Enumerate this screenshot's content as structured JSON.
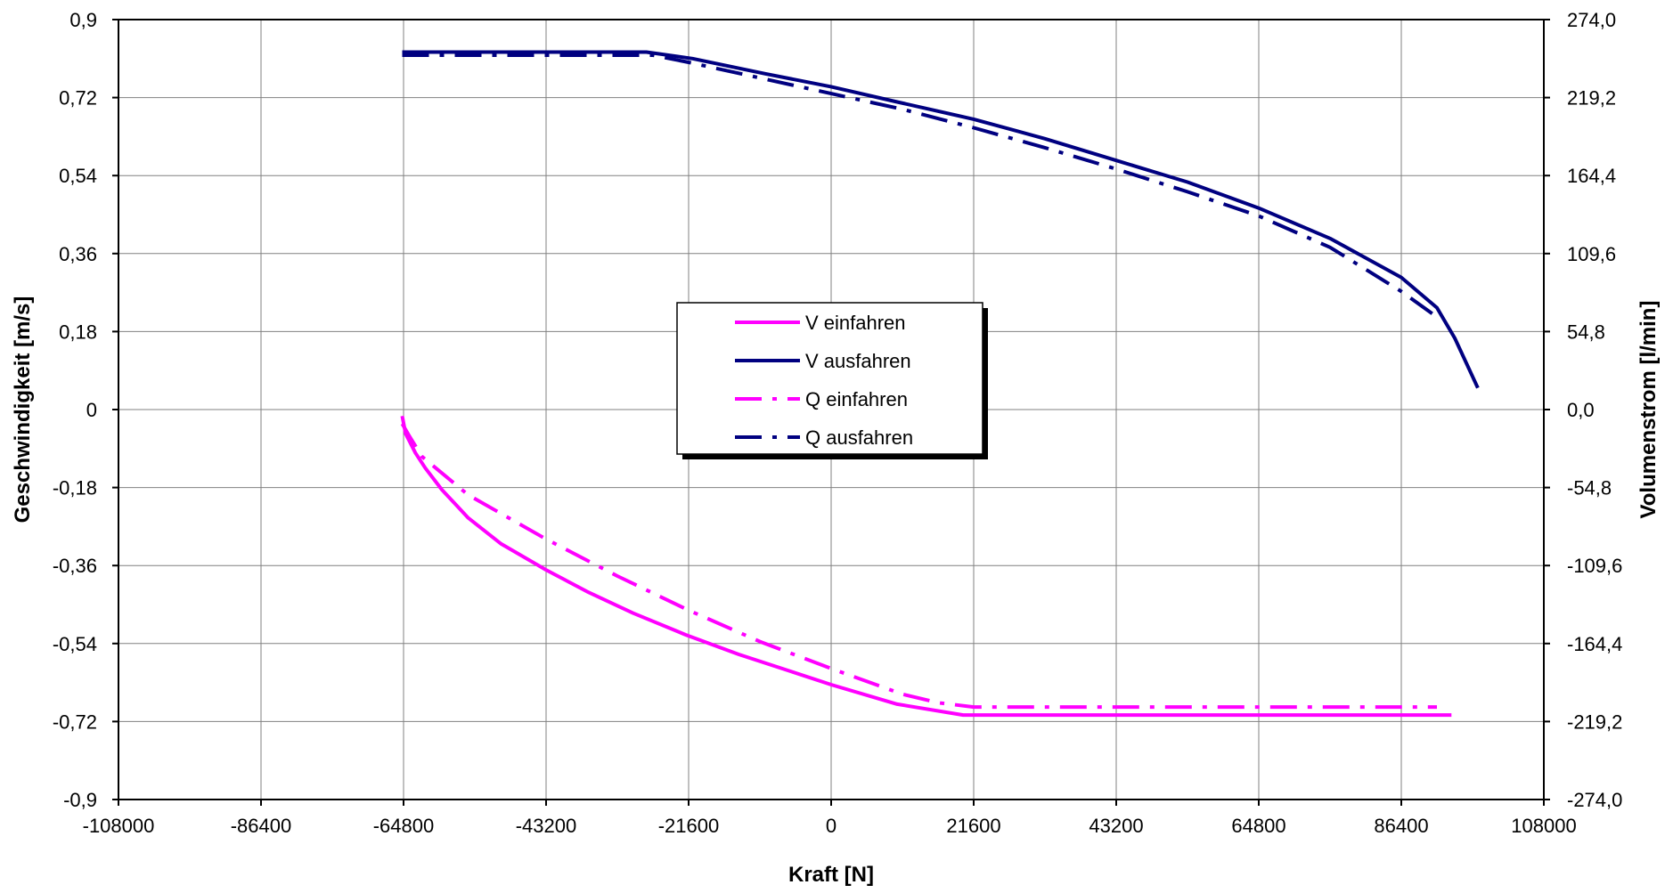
{
  "chart_data": {
    "type": "line",
    "title": "",
    "xlabel": "Kraft [N]",
    "ylabel": "Geschwindigkeit [m/s]",
    "y2label": "Volumenstrom [l/min]",
    "xlim": [
      -108000,
      108000
    ],
    "ylim": [
      -0.9,
      0.9
    ],
    "y2lim": [
      -274.0,
      274.0
    ],
    "grid": true,
    "legend_position": "center",
    "x_ticks": [
      "-108000",
      "-86400",
      "-64800",
      "-43200",
      "-21600",
      "0",
      "21600",
      "43200",
      "64800",
      "86400",
      "108000"
    ],
    "y_ticks": [
      "0,9",
      "0,72",
      "0,54",
      "0,36",
      "0,18",
      "0",
      "-0,18",
      "-0,36",
      "-0,54",
      "-0,72",
      "-0,9"
    ],
    "y2_ticks": [
      "274,0",
      "219,2",
      "164,4",
      "109,6",
      "54,8",
      "0,0",
      "-54,8",
      "-109,6",
      "-164,4",
      "-219,2",
      "-274,0"
    ],
    "series": [
      {
        "name": "V einfahren",
        "axis": "left",
        "color": "#ff00ff",
        "dash": "solid",
        "x": [
          -65000,
          -64500,
          -63000,
          -61500,
          -59000,
          -55000,
          -50000,
          -43200,
          -37000,
          -30000,
          -22000,
          -14000,
          -6000,
          0,
          10000,
          20000,
          30000,
          43200,
          64800,
          86400,
          94000
        ],
        "y": [
          -0.015,
          -0.055,
          -0.1,
          -0.135,
          -0.185,
          -0.25,
          -0.31,
          -0.37,
          -0.42,
          -0.47,
          -0.52,
          -0.565,
          -0.605,
          -0.635,
          -0.68,
          -0.705,
          -0.705,
          -0.705,
          -0.705,
          -0.705,
          -0.705
        ]
      },
      {
        "name": "V ausfahren",
        "axis": "left",
        "color": "#000080",
        "dash": "solid",
        "x": [
          -65000,
          -55000,
          -43200,
          -28000,
          -21000,
          -10000,
          0,
          10000,
          21600,
          32400,
          43200,
          54000,
          64800,
          75600,
          86400,
          91800,
          94500,
          98000
        ],
        "y": [
          0.825,
          0.825,
          0.825,
          0.825,
          0.81,
          0.775,
          0.745,
          0.71,
          0.67,
          0.625,
          0.575,
          0.525,
          0.465,
          0.395,
          0.305,
          0.235,
          0.165,
          0.05
        ]
      },
      {
        "name": "Q einfahren",
        "axis": "right",
        "color": "#ff00ff",
        "dash": "dashdot",
        "x": [
          -65000,
          -64000,
          -62000,
          -55000,
          -43200,
          -32400,
          -21600,
          -10800,
          0,
          10800,
          16200,
          21600,
          43200,
          64800,
          86400,
          91800
        ],
        "y": [
          -10.0,
          -18.0,
          -33.0,
          -60.0,
          -91.0,
          -117.0,
          -141.0,
          -163.0,
          -182.0,
          -200.0,
          -206.0,
          -209.0,
          -209.0,
          -209.0,
          -209.0,
          -209.0
        ]
      },
      {
        "name": "Q ausfahren",
        "axis": "right",
        "color": "#000080",
        "dash": "dashdot",
        "x": [
          -65000,
          -43200,
          -27000,
          -21600,
          -10800,
          0,
          10800,
          21600,
          32400,
          43200,
          54000,
          64800,
          75600,
          86400,
          91800
        ],
        "y": [
          249.0,
          249.0,
          249.0,
          244.0,
          233.0,
          222.0,
          211.0,
          198.0,
          184.0,
          169.0,
          153.0,
          136.0,
          114.0,
          83.0,
          65.0
        ]
      }
    ]
  }
}
